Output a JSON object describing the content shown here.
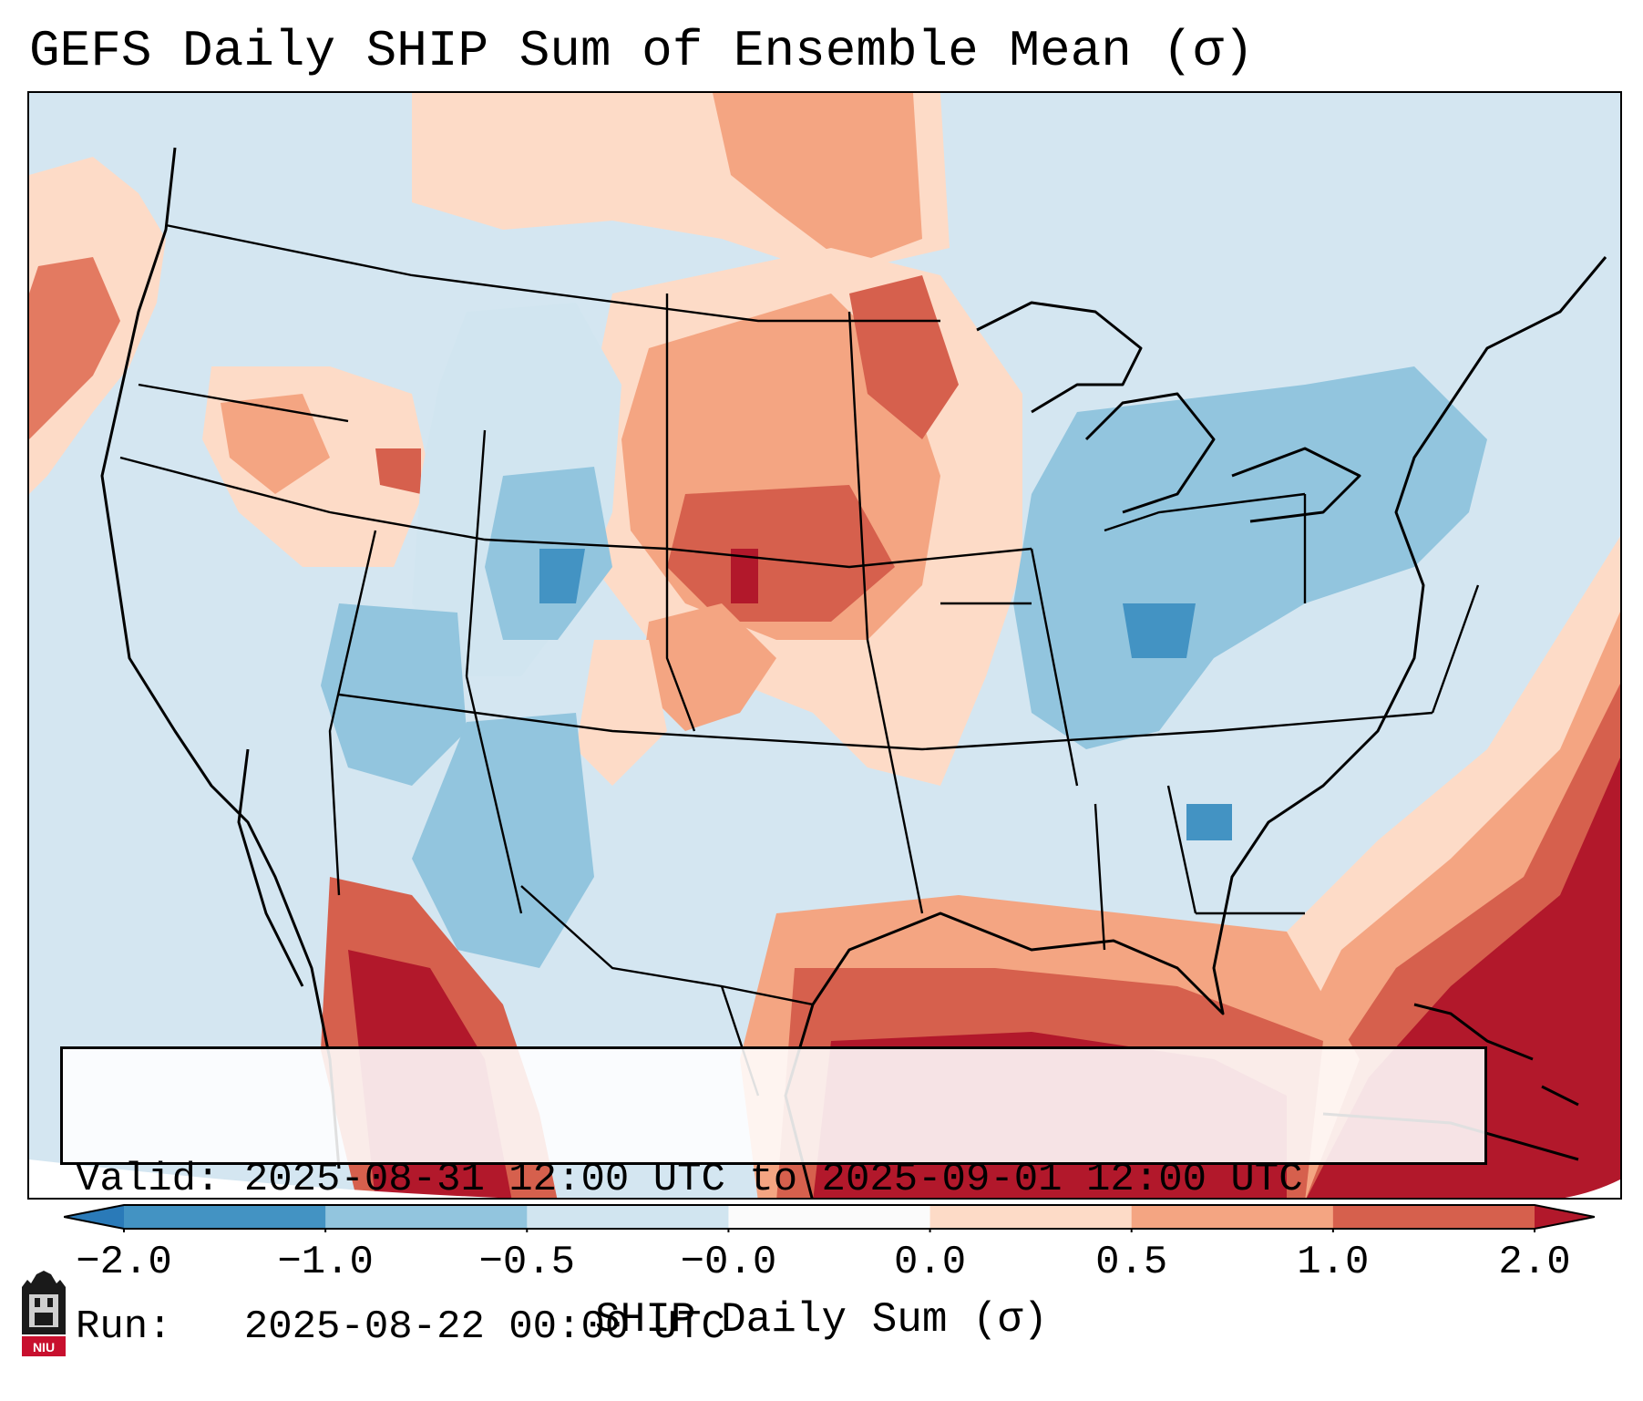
{
  "title": "GEFS Daily SHIP Sum of Ensemble Mean (σ)",
  "info": {
    "valid_line": "Valid: 2025-08-31 12:00 UTC to 2025-09-01 12:00 UTC",
    "run_line": "Run:   2025-08-22 00:00 UTC"
  },
  "colorbar": {
    "label": "SHIP Daily Sum (σ)",
    "ticks": [
      "−2.0",
      "−1.0",
      "−0.5",
      "−0.0",
      "0.0",
      "0.5",
      "1.0",
      "2.0"
    ],
    "colors": [
      "#2a7ab8",
      "#4393c3",
      "#92c5de",
      "#d1e5f0",
      "#fbfbfb",
      "#fddbc7",
      "#f4a582",
      "#d6604d",
      "#b2182b"
    ],
    "extend": "both"
  },
  "map": {
    "region": "Contiguous United States",
    "field": "SHIP Daily Sum (σ)"
  },
  "logo": {
    "text": "NIU"
  }
}
